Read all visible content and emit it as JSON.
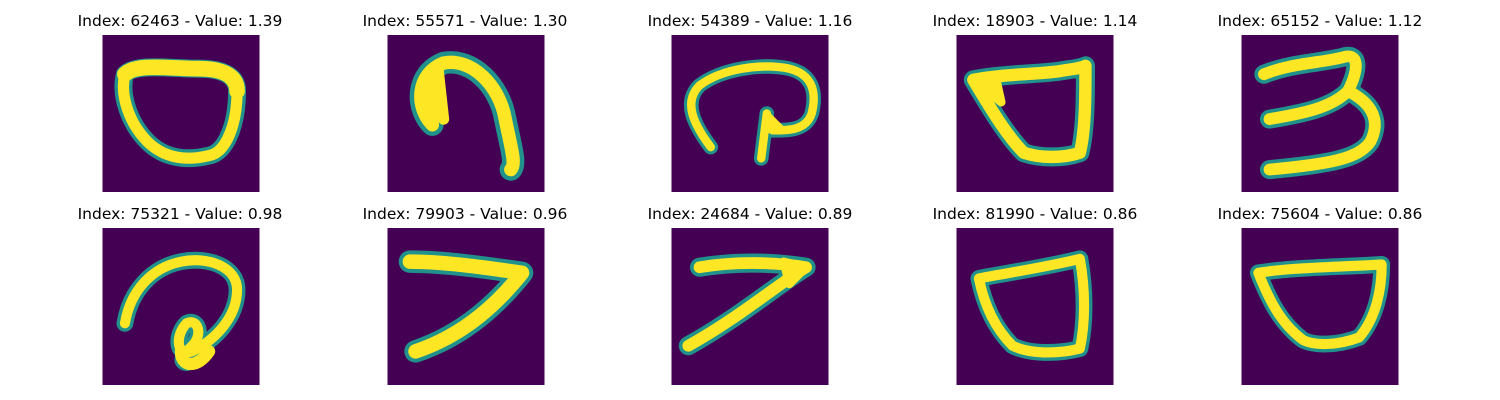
{
  "figure": {
    "colormap": "viridis",
    "background_color": "#440154",
    "stroke_color": "#fde725",
    "edge_color": "#21918c",
    "tiles": [
      {
        "title": "Index: 62463 - Value: 1.39"
      },
      {
        "title": "Index: 55571 - Value: 1.30"
      },
      {
        "title": "Index: 54389 - Value: 1.16"
      },
      {
        "title": "Index: 18903 - Value: 1.14"
      },
      {
        "title": "Index: 65152 - Value: 1.12"
      },
      {
        "title": "Index: 75321 - Value: 0.98"
      },
      {
        "title": "Index: 79903 - Value: 0.96"
      },
      {
        "title": "Index: 24684 - Value: 0.89"
      },
      {
        "title": "Index: 81990 - Value: 0.86"
      },
      {
        "title": "Index: 75604 - Value: 0.86"
      }
    ]
  }
}
